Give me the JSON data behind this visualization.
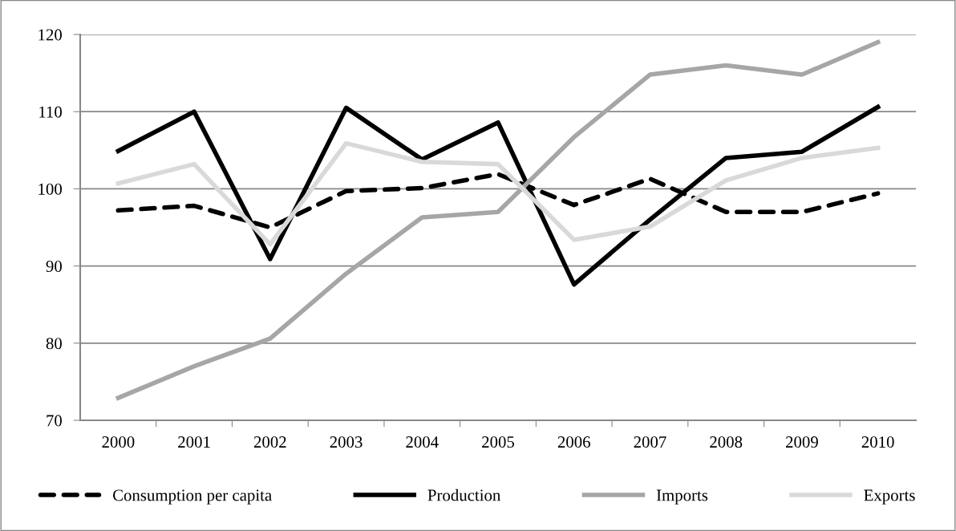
{
  "chart_data": {
    "type": "line",
    "categories": [
      "2000",
      "2001",
      "2002",
      "2003",
      "2004",
      "2005",
      "2006",
      "2007",
      "2008",
      "2009",
      "2010"
    ],
    "ylim": [
      70,
      120
    ],
    "yticks": [
      70,
      80,
      90,
      100,
      110,
      120
    ],
    "grid": "y",
    "legend": "bottom",
    "series": [
      {
        "name": "Consumption per capita",
        "color": "#000000",
        "line_style": "dashed",
        "values": [
          97.2,
          97.8,
          95,
          99.7,
          100.1,
          101.9,
          97.9,
          101.3,
          97,
          97,
          99.4
        ]
      },
      {
        "name": "Production",
        "color": "#000000",
        "values": [
          104.9,
          110,
          90.9,
          110.5,
          103.8,
          108.6,
          87.6,
          96,
          104,
          104.8,
          110.6
        ]
      },
      {
        "name": "Imports",
        "color": "#a6a6a6",
        "values": [
          72.9,
          77,
          80.6,
          89,
          96.3,
          97,
          106.7,
          114.8,
          116,
          114.8,
          119
        ]
      },
      {
        "name": "Exports",
        "color": "#d9d9d9",
        "values": [
          100.7,
          103.2,
          92.8,
          105.9,
          103.5,
          103.2,
          93.4,
          95.1,
          101.1,
          104,
          105.3
        ]
      }
    ]
  }
}
